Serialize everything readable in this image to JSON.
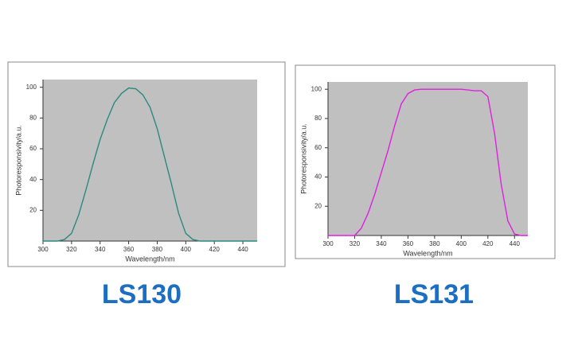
{
  "chart_data": [
    {
      "type": "line",
      "caption": "LS130",
      "xlabel": "Wavelength/nm",
      "ylabel": "Photoresponsivity/a.u.",
      "xlim": [
        300,
        450
      ],
      "ylim": [
        0,
        105
      ],
      "xticks": [
        300,
        320,
        340,
        360,
        380,
        400,
        420,
        440
      ],
      "yticks": [
        20,
        40,
        60,
        80,
        100
      ],
      "x": [
        300,
        305,
        310,
        315,
        320,
        325,
        330,
        335,
        340,
        345,
        350,
        355,
        360,
        365,
        370,
        375,
        380,
        385,
        390,
        395,
        400,
        405,
        410,
        415,
        420,
        425,
        430,
        435,
        440,
        445,
        450
      ],
      "series": [
        {
          "color": "#2a8a80",
          "values": [
            0,
            0,
            0,
            1,
            5,
            17,
            33,
            50,
            66,
            79,
            90,
            96,
            99.5,
            99,
            95,
            87,
            73,
            55,
            37,
            18,
            5,
            1,
            0,
            0,
            0,
            0,
            0,
            0,
            0,
            0,
            0
          ]
        }
      ]
    },
    {
      "type": "line",
      "caption": "LS131",
      "xlabel": "Wavelength/nm",
      "ylabel": "Photoresponsivity/a.u.",
      "xlim": [
        300,
        450
      ],
      "ylim": [
        0,
        105
      ],
      "xticks": [
        300,
        320,
        340,
        360,
        380,
        400,
        420,
        440
      ],
      "yticks": [
        20,
        40,
        60,
        80,
        100
      ],
      "x": [
        300,
        305,
        310,
        315,
        320,
        325,
        330,
        335,
        340,
        345,
        350,
        355,
        360,
        365,
        370,
        375,
        380,
        385,
        390,
        395,
        400,
        405,
        410,
        415,
        420,
        425,
        430,
        435,
        440,
        445,
        450
      ],
      "series": [
        {
          "color": "#e020e0",
          "values": [
            0,
            0,
            0,
            0,
            0,
            5,
            15,
            28,
            43,
            58,
            75,
            90,
            97,
            99.5,
            100,
            100,
            100,
            100,
            100,
            100,
            100,
            99.5,
            99,
            99,
            95,
            70,
            35,
            10,
            1,
            0,
            0
          ]
        }
      ]
    }
  ]
}
